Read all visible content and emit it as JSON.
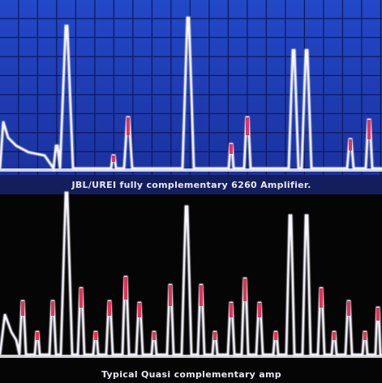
{
  "panels": [
    {
      "caption": "JBL/UREI fully complementary 6260 Amplifier."
    },
    {
      "caption": "Typical Quasi complementary amp"
    }
  ]
}
